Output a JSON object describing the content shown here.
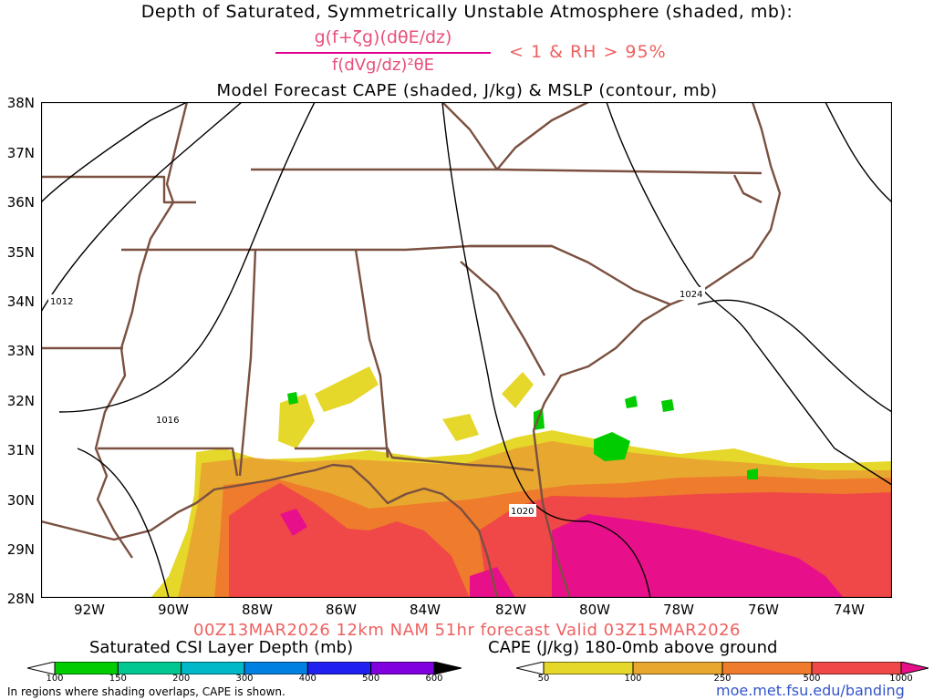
{
  "header": {
    "title_line1": "Depth of Saturated, Symmetrically Unstable Atmosphere (shaded, mb):",
    "fraction_numerator": "g(f+ζg)(dθE/dz)",
    "fraction_denominator": "f(dVg/dz)²θE",
    "condition": "< 1 & RH > 95%",
    "title_line3": "Model Forecast CAPE (shaded, J/kg) & MSLP (contour, mb)"
  },
  "axes": {
    "lat_labels": [
      "38N",
      "37N",
      "36N",
      "35N",
      "34N",
      "33N",
      "32N",
      "31N",
      "30N",
      "29N",
      "28N"
    ],
    "lon_labels": [
      "92W",
      "90W",
      "88W",
      "86W",
      "84W",
      "82W",
      "80W",
      "78W",
      "76W",
      "74W"
    ]
  },
  "isobars": {
    "labels": [
      "1012",
      "1016",
      "1020",
      "1024"
    ]
  },
  "footer": {
    "forecast_info": "00Z13MAR2026 12km NAM 51hr forecast Valid 03Z15MAR2026",
    "csi_legend_title": "Saturated CSI Layer Depth (mb)",
    "cape_legend_title": "CAPE (J/kg) 180-0mb above ground",
    "note": "In regions where shading overlaps, CAPE is shown.",
    "url": "moe.met.fsu.edu/banding"
  },
  "legends": {
    "csi": {
      "ticks": [
        "100",
        "150",
        "200",
        "300",
        "400",
        "500",
        "600"
      ],
      "colors": [
        "#ffffff",
        "#00cc00",
        "#00c890",
        "#00b8c8",
        "#0080e0",
        "#2020f0",
        "#8000e0",
        "#000000"
      ]
    },
    "cape": {
      "ticks": [
        "50",
        "100",
        "250",
        "500",
        "1000"
      ],
      "colors": [
        "#ffffff",
        "#e6d82a",
        "#e8a830",
        "#ee7c2c",
        "#f04848",
        "#e8108a"
      ]
    }
  }
}
